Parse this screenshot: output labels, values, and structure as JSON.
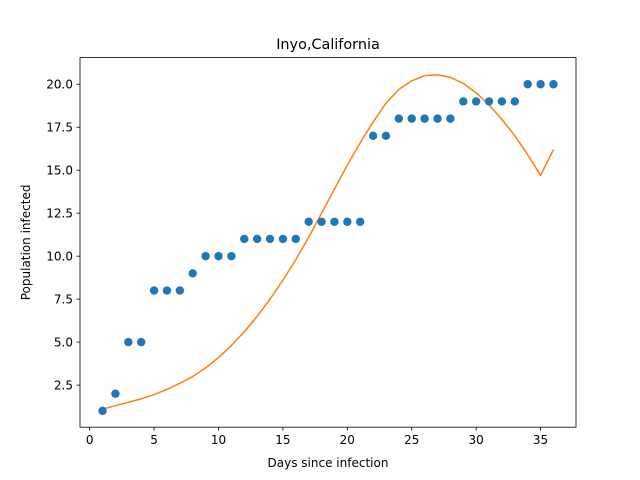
{
  "chart_data": {
    "type": "scatter",
    "title": "Inyo,California",
    "xlabel": "Days since infection",
    "ylabel": "Population infected",
    "xlim": [
      -0.75,
      37.75
    ],
    "ylim": [
      0.05,
      21.55
    ],
    "xticks": [
      0,
      5,
      10,
      15,
      20,
      25,
      30,
      35
    ],
    "xtick_labels": [
      "0",
      "5",
      "10",
      "15",
      "20",
      "25",
      "30",
      "35"
    ],
    "yticks": [
      2.5,
      5.0,
      7.5,
      10.0,
      12.5,
      15.0,
      17.5,
      20.0
    ],
    "ytick_labels": [
      "2.5",
      "5.0",
      "7.5",
      "10.0",
      "12.5",
      "15.0",
      "17.5",
      "20.0"
    ],
    "grid": false,
    "series": [
      {
        "kind": "scatter",
        "color": "#1f77b4",
        "x": [
          1,
          2,
          3,
          4,
          5,
          6,
          7,
          8,
          9,
          10,
          11,
          12,
          13,
          14,
          15,
          16,
          17,
          18,
          19,
          20,
          21,
          22,
          23,
          24,
          25,
          26,
          27,
          28,
          29,
          30,
          31,
          32,
          33,
          34,
          35,
          36
        ],
        "y": [
          1,
          2,
          5,
          5,
          8,
          8,
          8,
          9,
          10,
          10,
          10,
          11,
          11,
          11,
          11,
          11,
          12,
          12,
          12,
          12,
          12,
          17,
          17,
          18,
          18,
          18,
          18,
          18,
          19,
          19,
          19,
          19,
          19,
          20,
          20,
          20
        ]
      },
      {
        "kind": "line",
        "color": "#ff7f0e",
        "x": [
          1,
          2,
          3,
          4,
          5,
          6,
          7,
          8,
          9,
          10,
          11,
          12,
          13,
          14,
          15,
          16,
          17,
          18,
          19,
          20,
          21,
          22,
          23,
          24,
          25,
          26,
          27,
          28,
          29,
          30,
          31,
          32,
          33,
          34,
          35,
          36
        ],
        "y": [
          1.1,
          1.3,
          1.5,
          1.7,
          1.95,
          2.25,
          2.6,
          3.0,
          3.5,
          4.1,
          4.8,
          5.6,
          6.5,
          7.5,
          8.6,
          9.8,
          11.1,
          12.5,
          13.9,
          15.3,
          16.6,
          17.8,
          18.9,
          19.7,
          20.2,
          20.5,
          20.55,
          20.4,
          20.05,
          19.5,
          18.8,
          17.95,
          17.0,
          15.9,
          14.7,
          16.2
        ]
      }
    ]
  }
}
